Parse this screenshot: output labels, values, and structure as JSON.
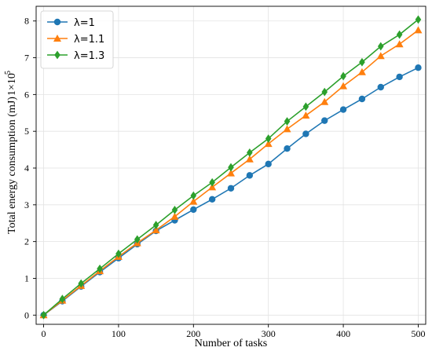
{
  "chart_data": {
    "type": "line",
    "xlabel": "Number of tasks",
    "ylabel": "Total energy consumption (mJ)",
    "scale_label": "1×10",
    "scale_exponent": "5",
    "xlim": [
      -10,
      510
    ],
    "ylim": [
      -0.25,
      8.4
    ],
    "x_ticks": [
      0,
      100,
      200,
      300,
      400,
      500
    ],
    "y_ticks": [
      0,
      1,
      2,
      3,
      4,
      5,
      6,
      7,
      8
    ],
    "x_tick_labels": [
      "0",
      "100",
      "200",
      "300",
      "400",
      "500"
    ],
    "y_tick_labels": [
      "0",
      "1",
      "2",
      "3",
      "4",
      "5",
      "6",
      "7",
      "8"
    ],
    "grid": true,
    "legend_position": "top-left",
    "x": [
      0,
      25,
      50,
      75,
      100,
      125,
      150,
      175,
      200,
      225,
      250,
      275,
      300,
      325,
      350,
      375,
      400,
      425,
      450,
      475,
      500
    ],
    "series": [
      {
        "name": "λ=1",
        "color": "#1f77b4",
        "marker": "circle",
        "values": [
          0,
          0.38,
          0.78,
          1.17,
          1.55,
          1.93,
          2.29,
          2.58,
          2.87,
          3.15,
          3.45,
          3.8,
          4.11,
          4.53,
          4.93,
          5.29,
          5.59,
          5.88,
          6.2,
          6.48,
          6.73
        ]
      },
      {
        "name": "λ=1.1",
        "color": "#ff7f0e",
        "marker": "triangle",
        "values": [
          0,
          0.4,
          0.8,
          1.2,
          1.59,
          1.96,
          2.31,
          2.68,
          3.09,
          3.48,
          3.86,
          4.24,
          4.66,
          5.06,
          5.43,
          5.8,
          6.23,
          6.61,
          7.05,
          7.37,
          7.75
        ]
      },
      {
        "name": "λ=1.3",
        "color": "#2ca02c",
        "marker": "diamond",
        "values": [
          0,
          0.44,
          0.86,
          1.26,
          1.67,
          2.06,
          2.45,
          2.86,
          3.25,
          3.61,
          4.02,
          4.42,
          4.8,
          5.27,
          5.67,
          6.07,
          6.5,
          6.88,
          7.31,
          7.63,
          8.04
        ]
      }
    ]
  }
}
